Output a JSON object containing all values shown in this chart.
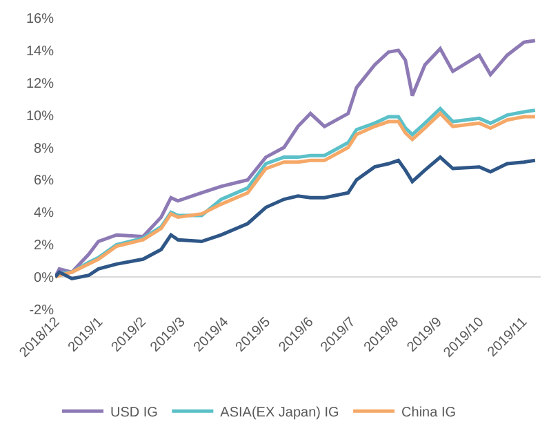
{
  "chart_data": {
    "type": "line",
    "x": [
      "2018-12-01",
      "2018-12-04",
      "2018-12-13",
      "2018-12-25",
      "2019-01-01",
      "2019-01-14",
      "2019-02-02",
      "2019-02-15",
      "2019-02-22",
      "2019-02-27",
      "2019-03-16",
      "2019-03-30",
      "2019-04-18",
      "2019-05-01",
      "2019-05-14",
      "2019-05-24",
      "2019-06-02",
      "2019-06-12",
      "2019-06-29",
      "2019-07-05",
      "2019-07-18",
      "2019-07-28",
      "2019-08-04",
      "2019-08-09",
      "2019-08-14",
      "2019-08-23",
      "2019-09-03",
      "2019-09-12",
      "2019-10-01",
      "2019-10-09",
      "2019-10-21",
      "2019-11-02",
      "2019-11-10"
    ],
    "series": [
      {
        "name": "USD IG",
        "color": "#8d7ab5",
        "values": [
          0,
          0.5,
          0.3,
          1.4,
          2.2,
          2.6,
          2.5,
          3.7,
          4.9,
          4.7,
          5.2,
          5.6,
          6.0,
          7.4,
          8.0,
          9.3,
          10.1,
          9.3,
          10.1,
          11.7,
          13.1,
          13.9,
          14.0,
          13.4,
          11.2,
          13.1,
          14.1,
          12.7,
          13.7,
          12.5,
          13.7,
          14.5,
          14.6
        ]
      },
      {
        "name": "ASIA(EX Japan) IG",
        "color": "#5bc0c8",
        "values": [
          0,
          0.2,
          0.3,
          0.9,
          1.2,
          2.0,
          2.4,
          3.1,
          4.0,
          3.8,
          3.8,
          4.8,
          5.5,
          7.0,
          7.4,
          7.4,
          7.5,
          7.5,
          8.3,
          9.1,
          9.5,
          9.9,
          9.9,
          9.2,
          8.8,
          9.5,
          10.4,
          9.6,
          9.8,
          9.5,
          10.0,
          10.2,
          10.3
        ]
      },
      {
        "name": "China IG",
        "color": "#f5a867",
        "values": [
          0,
          0.1,
          0.3,
          0.8,
          1.1,
          1.9,
          2.3,
          3.0,
          3.9,
          3.7,
          3.9,
          4.5,
          5.2,
          6.7,
          7.1,
          7.1,
          7.2,
          7.2,
          8.0,
          8.8,
          9.3,
          9.6,
          9.6,
          8.9,
          8.5,
          9.2,
          10.1,
          9.3,
          9.5,
          9.2,
          9.7,
          9.9,
          9.9
        ]
      },
      {
        "color": "#2e5687",
        "values": [
          0,
          0.3,
          -0.1,
          0.1,
          0.5,
          0.8,
          1.1,
          1.7,
          2.6,
          2.3,
          2.2,
          2.6,
          3.3,
          4.3,
          4.8,
          5.0,
          4.9,
          4.9,
          5.2,
          6.0,
          6.8,
          7.0,
          7.2,
          6.6,
          5.9,
          6.6,
          7.4,
          6.7,
          6.8,
          6.5,
          7.0,
          7.1,
          7.2
        ]
      }
    ],
    "xlim": [
      "2018-12-01",
      "2019-11-14"
    ],
    "xticks": [
      {
        "value": "2018-12-01",
        "label": "2018/12"
      },
      {
        "value": "2019-01-01",
        "label": "2019/1"
      },
      {
        "value": "2019-02-01",
        "label": "2019/2"
      },
      {
        "value": "2019-03-01",
        "label": "2019/3"
      },
      {
        "value": "2019-04-01",
        "label": "2019/4"
      },
      {
        "value": "2019-05-01",
        "label": "2019/5"
      },
      {
        "value": "2019-06-01",
        "label": "2019/6"
      },
      {
        "value": "2019-07-01",
        "label": "2019/7"
      },
      {
        "value": "2019-08-01",
        "label": "2019/8"
      },
      {
        "value": "2019-09-01",
        "label": "2019/9"
      },
      {
        "value": "2019-10-01",
        "label": "2019/10"
      },
      {
        "value": "2019-11-01",
        "label": "2019/11"
      }
    ],
    "ylim": [
      -2,
      16
    ],
    "yticks": [
      {
        "value": -2,
        "label": "-2%"
      },
      {
        "value": 0,
        "label": "0%"
      },
      {
        "value": 2,
        "label": "2%"
      },
      {
        "value": 4,
        "label": "4%"
      },
      {
        "value": 6,
        "label": "6%"
      },
      {
        "value": 8,
        "label": "8%"
      },
      {
        "value": 10,
        "label": "10%"
      },
      {
        "value": 12,
        "label": "12%"
      },
      {
        "value": 14,
        "label": "14%"
      },
      {
        "value": 16,
        "label": "16%"
      }
    ],
    "grid": false,
    "ref_lines": [
      {
        "axis": "y",
        "value": 0,
        "color": "#d9d9d9"
      }
    ],
    "legend": "bottom",
    "marker": "none",
    "line_style": "solid"
  }
}
